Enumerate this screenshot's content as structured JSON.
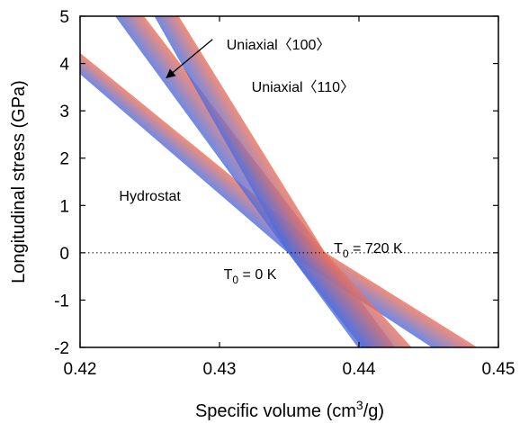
{
  "chart_data": {
    "type": "line",
    "xlabel": {
      "prefix": "Specific volume (cm",
      "sup": "3",
      "suffix": "/g)"
    },
    "ylabel": "Longitudinal stress (GPa)",
    "xlim": [
      0.42,
      0.45
    ],
    "ylim": [
      -2,
      5
    ],
    "xticks": [
      0.42,
      0.43,
      0.44,
      0.45
    ],
    "xtick_labels": [
      "0.42",
      "0.43",
      "0.44",
      "0.45"
    ],
    "yticks": [
      -2,
      -1,
      0,
      1,
      2,
      3,
      4,
      5
    ],
    "ytick_labels": [
      "-2",
      "-1",
      "0",
      "1",
      "2",
      "3",
      "4",
      "5"
    ],
    "zero_line": "dotted",
    "color_gradient": {
      "from": "#4e6ee0",
      "to": "#e8715f",
      "cold_label": "T0 = 0 K",
      "hot_label": "T0 = 720 K"
    },
    "series": [
      {
        "name": "Hydrostat",
        "cold": {
          "x": [
            0.42,
            0.435,
            0.45
          ],
          "y": [
            3.8,
            0.0,
            -2.9
          ]
        },
        "hot": {
          "x": [
            0.42,
            0.4375,
            0.45
          ],
          "y": [
            4.2,
            0.0,
            -2.3
          ]
        }
      },
      {
        "name": "Uniaxial 〈100〉",
        "cold": {
          "x": [
            0.4226,
            0.435,
            0.44
          ],
          "y": [
            5.0,
            0.0,
            -2.0
          ]
        },
        "hot": {
          "x": [
            0.4245,
            0.4375,
            0.4425
          ],
          "y": [
            5.0,
            0.0,
            -2.0
          ]
        }
      },
      {
        "name": "Uniaxial 〈110〉",
        "cold": {
          "x": [
            0.4254,
            0.435,
            0.4403
          ],
          "y": [
            5.0,
            0.0,
            -2.0
          ]
        },
        "hot": {
          "x": [
            0.427,
            0.4375,
            0.4437
          ],
          "y": [
            5.0,
            0.0,
            -2.0
          ]
        }
      }
    ],
    "annotations": [
      {
        "id": "u100",
        "text": "Uniaxial〈100〉",
        "x": 0.4305,
        "y": 4.3
      },
      {
        "id": "u110",
        "text": "Uniaxial〈110〉",
        "x": 0.4323,
        "y": 3.4
      },
      {
        "id": "hydro",
        "text": "Hydrostat",
        "x": 0.4228,
        "y": 1.1
      },
      {
        "id": "hot",
        "main": "T",
        "sub": "0",
        "rest": " = 720 K",
        "x": 0.4382,
        "y": 0.0
      },
      {
        "id": "cold",
        "main": "T",
        "sub": "0",
        "rest": " = 0 K",
        "x": 0.4303,
        "y": -0.55
      }
    ],
    "arrow": {
      "from": [
        0.4295,
        4.51
      ],
      "to": [
        0.4262,
        3.7
      ]
    }
  }
}
